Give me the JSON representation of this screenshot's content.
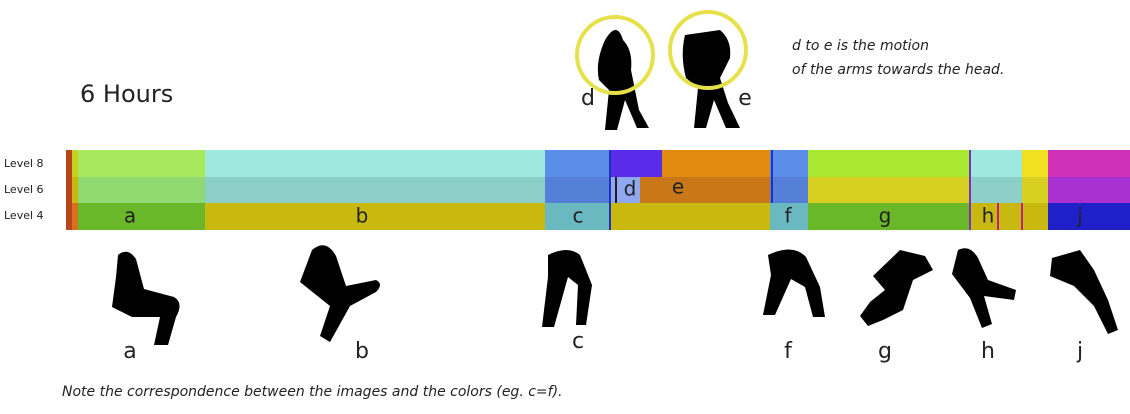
{
  "title": "6 Hours",
  "annotation": [
    "d to e is the motion",
    "of the arms towards the head."
  ],
  "levels": [
    "Level 8",
    "Level 6",
    "Level 4"
  ],
  "band_labels": [
    "a",
    "b",
    "c",
    "d",
    "e",
    "f",
    "g",
    "h",
    "j"
  ],
  "top_poses": [
    "d",
    "e"
  ],
  "bottom_poses": [
    "a",
    "b",
    "c",
    "f",
    "g",
    "h",
    "j"
  ],
  "note": "Note the correspondence between the images and the colors (eg. c=f)."
}
